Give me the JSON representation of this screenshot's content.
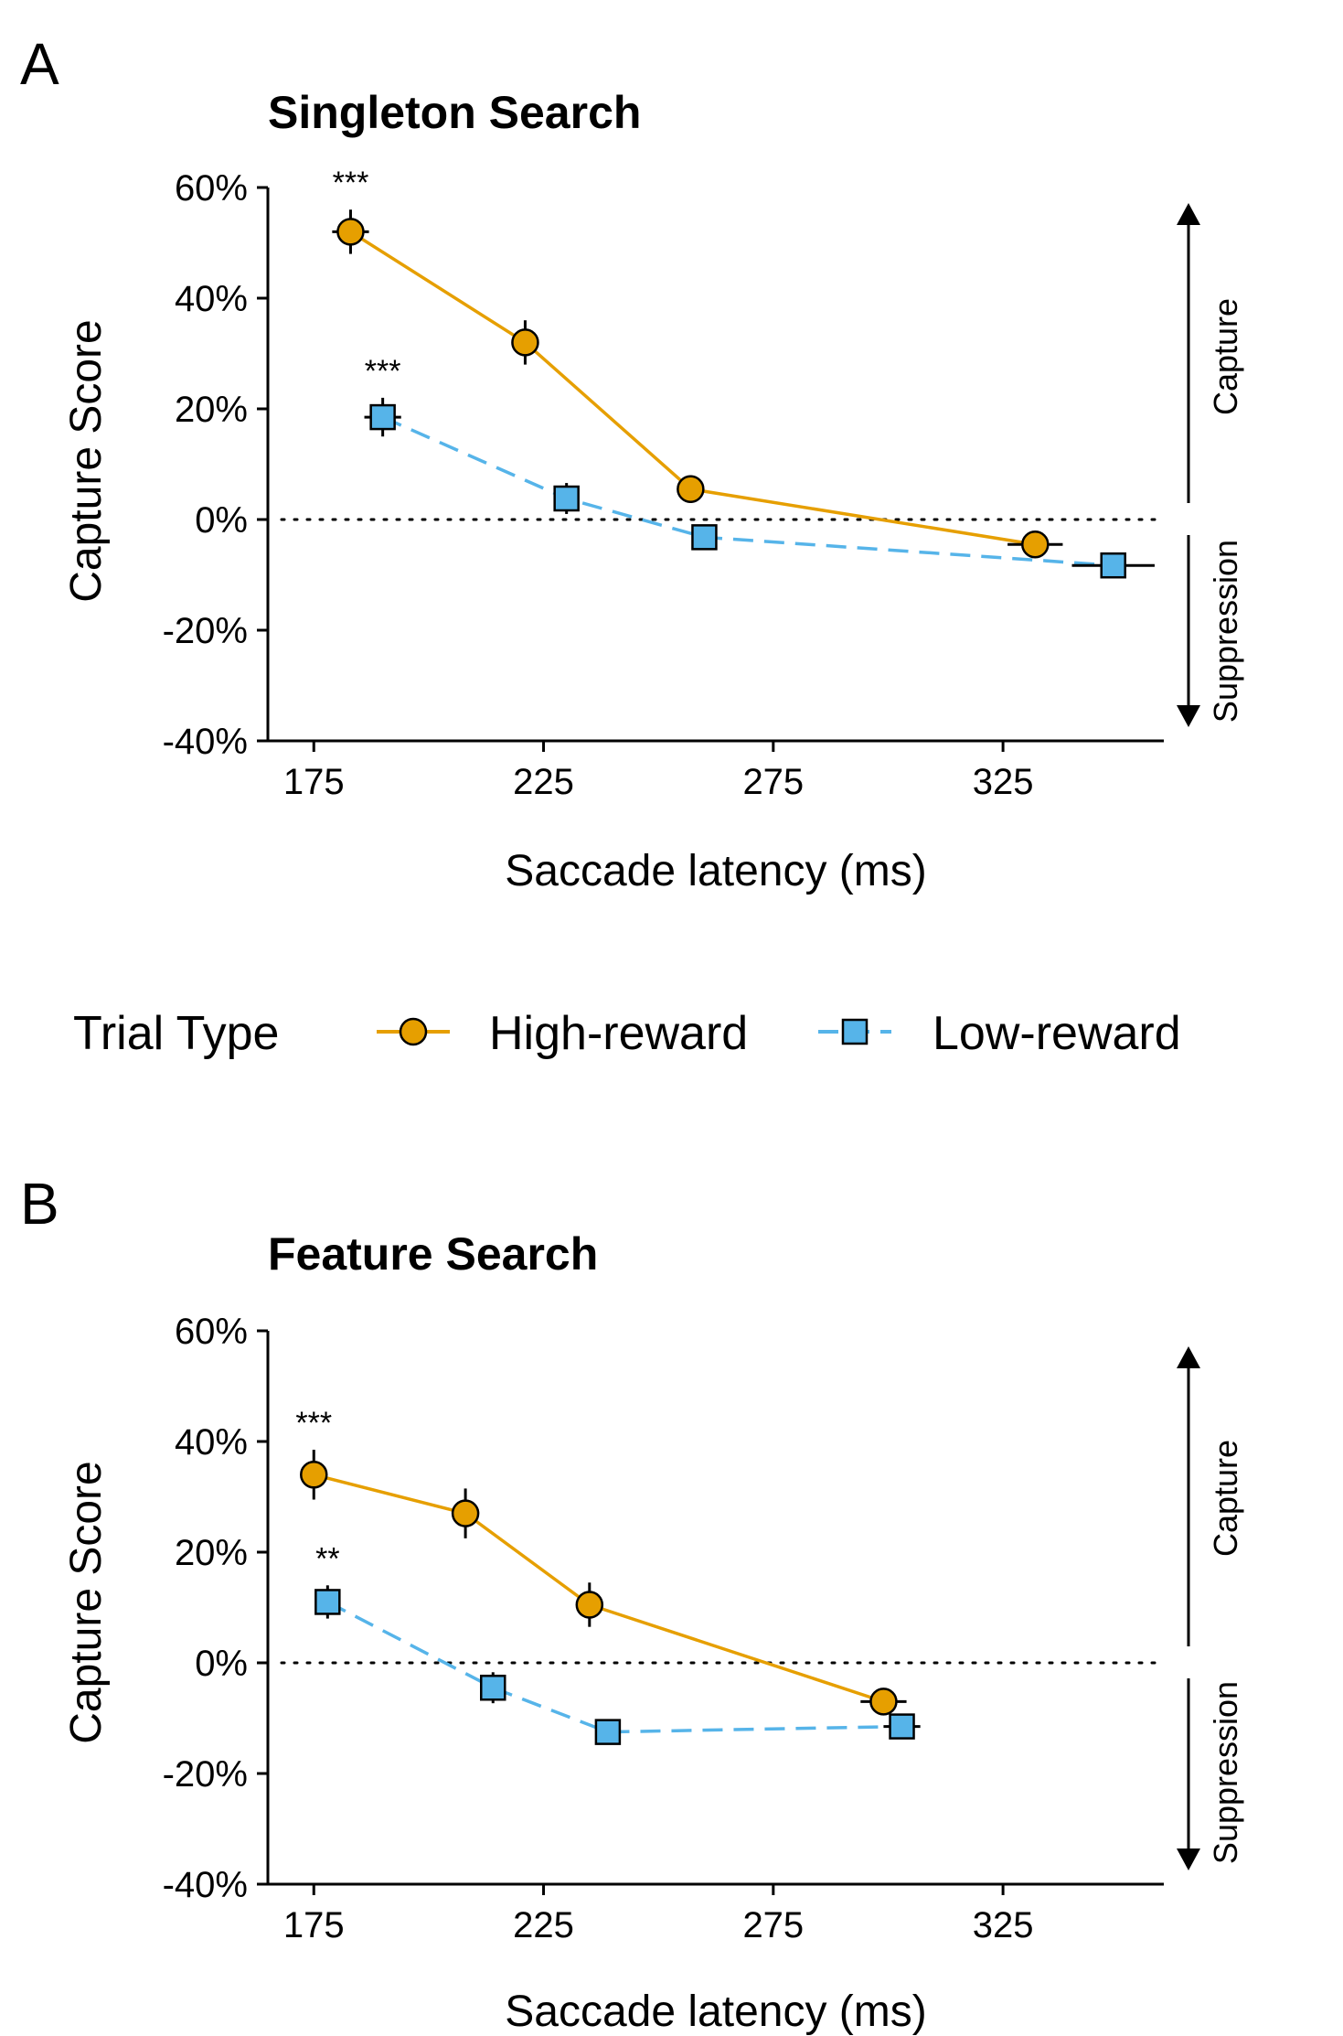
{
  "legend": {
    "title": "Trial Type",
    "high_label": "High-reward",
    "low_label": "Low-reward"
  },
  "colors": {
    "high": "#E69F00",
    "low": "#56B4E9",
    "stroke": "#000000"
  },
  "chart_data": [
    {
      "panel": "A",
      "type": "line",
      "title": "Singleton Search",
      "xlabel": "Saccade latency (ms)",
      "ylabel": "Capture Score",
      "xlim": [
        165,
        360
      ],
      "ylim": [
        -40,
        60
      ],
      "x_ticks": [
        175,
        225,
        275,
        325
      ],
      "y_ticks": [
        -40,
        -20,
        0,
        20,
        40,
        60
      ],
      "y_tick_labels": [
        "-40%",
        "-20%",
        "0%",
        "20%",
        "40%",
        "60%"
      ],
      "side_labels": {
        "up": "Capture",
        "down": "Suppression"
      },
      "series": [
        {
          "name": "High-reward",
          "key": "high",
          "points": [
            {
              "x": 183,
              "y": 52,
              "xerr": 4,
              "yerr": 4,
              "sig": "***"
            },
            {
              "x": 221,
              "y": 32,
              "xerr": 2,
              "yerr": 4,
              "sig": ""
            },
            {
              "x": 257,
              "y": 5.5,
              "xerr": 2,
              "yerr": 2.5,
              "sig": ""
            },
            {
              "x": 332,
              "y": -4.5,
              "xerr": 6,
              "yerr": 1.5,
              "sig": ""
            }
          ]
        },
        {
          "name": "Low-reward",
          "key": "low",
          "points": [
            {
              "x": 190,
              "y": 18.5,
              "xerr": 4,
              "yerr": 3.5,
              "sig": "***"
            },
            {
              "x": 230,
              "y": 3.8,
              "xerr": 2,
              "yerr": 2.8,
              "sig": ""
            },
            {
              "x": 260,
              "y": -3.2,
              "xerr": 2,
              "yerr": 1.5,
              "sig": ""
            },
            {
              "x": 349,
              "y": -8.3,
              "xerr": 9,
              "yerr": 1.5,
              "sig": ""
            }
          ]
        }
      ]
    },
    {
      "panel": "B",
      "type": "line",
      "title": "Feature Search",
      "xlabel": "Saccade latency (ms)",
      "ylabel": "Capture Score",
      "xlim": [
        165,
        360
      ],
      "ylim": [
        -40,
        60
      ],
      "x_ticks": [
        175,
        225,
        275,
        325
      ],
      "y_ticks": [
        -40,
        -20,
        0,
        20,
        40,
        60
      ],
      "y_tick_labels": [
        "-40%",
        "-20%",
        "0%",
        "20%",
        "40%",
        "60%"
      ],
      "side_labels": {
        "up": "Capture",
        "down": "Suppression"
      },
      "series": [
        {
          "name": "High-reward",
          "key": "high",
          "points": [
            {
              "x": 175,
              "y": 34,
              "xerr": 2,
              "yerr": 4.5,
              "sig": "***"
            },
            {
              "x": 208,
              "y": 27,
              "xerr": 2,
              "yerr": 4.5,
              "sig": ""
            },
            {
              "x": 235,
              "y": 10.5,
              "xerr": 2,
              "yerr": 4,
              "sig": ""
            },
            {
              "x": 299,
              "y": -7,
              "xerr": 5,
              "yerr": 1.5,
              "sig": ""
            }
          ]
        },
        {
          "name": "Low-reward",
          "key": "low",
          "points": [
            {
              "x": 178,
              "y": 11,
              "xerr": 2,
              "yerr": 3,
              "sig": "**"
            },
            {
              "x": 214,
              "y": -4.5,
              "xerr": 2,
              "yerr": 2.8,
              "sig": ""
            },
            {
              "x": 239,
              "y": -12.5,
              "xerr": 2,
              "yerr": 1.5,
              "sig": ""
            },
            {
              "x": 303,
              "y": -11.5,
              "xerr": 4,
              "yerr": 1.5,
              "sig": ""
            }
          ]
        }
      ]
    }
  ]
}
